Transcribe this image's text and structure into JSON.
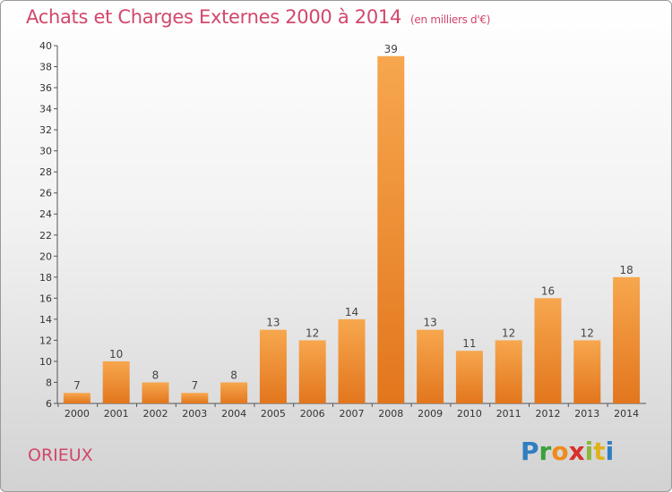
{
  "chart_data": {
    "type": "bar",
    "title": "Achats et Charges Externes 2000 à 2014",
    "subtitle": "(en milliers d'€)",
    "categories": [
      "2000",
      "2001",
      "2002",
      "2003",
      "2004",
      "2005",
      "2006",
      "2007",
      "2008",
      "2009",
      "2010",
      "2011",
      "2012",
      "2013",
      "2014"
    ],
    "values": [
      7,
      10,
      8,
      7,
      8,
      13,
      12,
      14,
      39,
      13,
      11,
      12,
      16,
      12,
      18
    ],
    "ylim": [
      6,
      40
    ],
    "yticks": [
      6,
      8,
      10,
      12,
      14,
      16,
      18,
      20,
      22,
      24,
      26,
      28,
      30,
      32,
      34,
      36,
      38,
      40
    ],
    "grid": false,
    "bar_color_light": "#f7a74e",
    "bar_color_dark": "#e2761d"
  },
  "footer": {
    "commune": "ORIEUX",
    "logo_letters": [
      "P",
      "r",
      "o",
      "x",
      "i",
      "t",
      "i"
    ]
  }
}
